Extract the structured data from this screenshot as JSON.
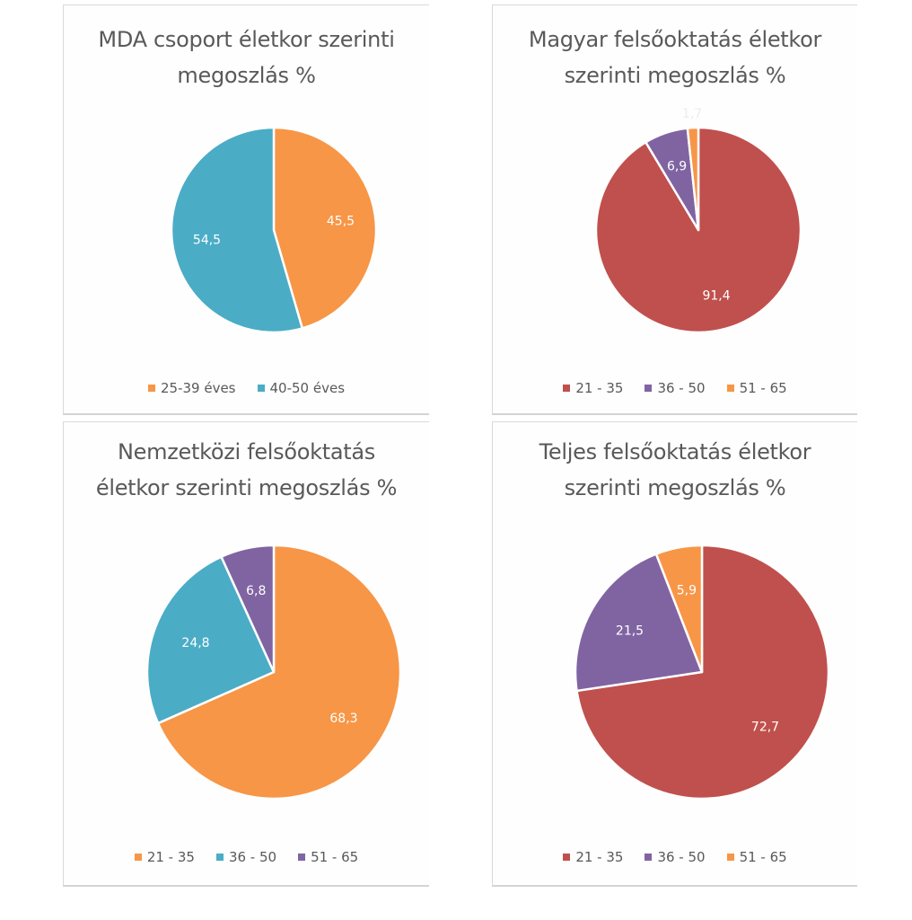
{
  "chart_data": [
    {
      "type": "pie",
      "title": "MDA csoport életkor szerinti megoszlás %",
      "title_lines": [
        "MDA csoport életkor szerinti",
        "megoszlás %"
      ],
      "categories": [
        "25-39 éves",
        "40-50 éves"
      ],
      "values": [
        45.5,
        54.5
      ],
      "labels": [
        "45,5",
        "54,5"
      ],
      "colors": [
        "#f79646",
        "#4bacc6"
      ],
      "legend_position": "bottom"
    },
    {
      "type": "pie",
      "title": "Magyar felsőoktatás életkor szerinti megoszlás %",
      "title_lines": [
        "Magyar felsőoktatás életkor",
        "szerinti megoszlás %"
      ],
      "categories": [
        "21 - 35",
        "36 - 50",
        "51 - 65"
      ],
      "values": [
        91.4,
        6.9,
        1.7
      ],
      "labels": [
        "91,4",
        "6,9",
        "1,7"
      ],
      "colors": [
        "#c0504d",
        "#8064a2",
        "#f79646"
      ],
      "legend_position": "bottom"
    },
    {
      "type": "pie",
      "title": "Nemzetközi felsőoktatás életkor szerinti megoszlás %",
      "title_lines": [
        "Nemzetközi felsőoktatás",
        "életkor szerinti megoszlás %"
      ],
      "categories": [
        "21 - 35",
        "36 - 50",
        "51 - 65"
      ],
      "values": [
        68.3,
        24.8,
        6.8
      ],
      "labels": [
        "68,3",
        "24,8",
        "6,8"
      ],
      "colors": [
        "#f79646",
        "#4bacc6",
        "#8064a2"
      ],
      "legend_position": "bottom"
    },
    {
      "type": "pie",
      "title": "Teljes felsőoktatás életkor szerinti megoszlás %",
      "title_lines": [
        "Teljes felsőoktatás életkor",
        "szerinti megoszlás %"
      ],
      "categories": [
        "21 - 35",
        "36 - 50",
        "51 - 65"
      ],
      "values": [
        72.7,
        21.5,
        5.9
      ],
      "labels": [
        "72,7",
        "21,5",
        "5,9"
      ],
      "colors": [
        "#c0504d",
        "#8064a2",
        "#f79646"
      ],
      "legend_position": "bottom"
    }
  ]
}
